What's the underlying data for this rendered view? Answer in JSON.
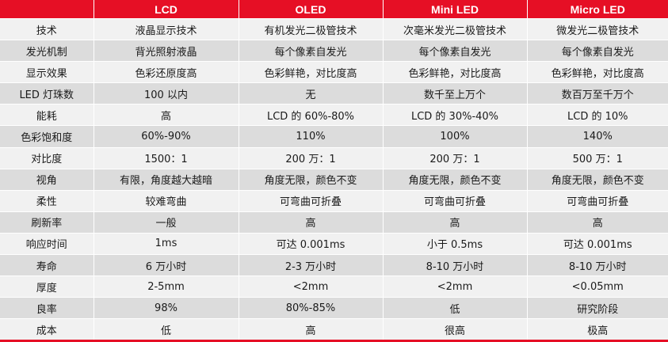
{
  "table": {
    "header": [
      "",
      "LCD",
      "OLED",
      "Mini LED",
      "Micro LED"
    ],
    "rows": [
      [
        "技术",
        "液晶显示技术",
        "有机发光二极管技术",
        "次毫米发光二极管技术",
        "微发光二极管技术"
      ],
      [
        "发光机制",
        "背光照射液晶",
        "每个像素自发光",
        "每个像素自发光",
        "每个像素自发光"
      ],
      [
        "显示效果",
        "色彩还原度高",
        "色彩鲜艳，对比度高",
        "色彩鲜艳，对比度高",
        "色彩鲜艳，对比度高"
      ],
      [
        "LED 灯珠数",
        "100 以内",
        "无",
        "数千至上万个",
        "数百万至千万个"
      ],
      [
        "能耗",
        "高",
        "LCD 的 60%-80%",
        "LCD 的 30%-40%",
        "LCD 的 10%"
      ],
      [
        "色彩饱和度",
        "60%-90%",
        "110%",
        "100%",
        "140%"
      ],
      [
        "对比度",
        "1500：1",
        "200 万：1",
        "200 万：1",
        "500 万：1"
      ],
      [
        "视角",
        "有限，角度越大越暗",
        "角度无限，颜色不变",
        "角度无限，颜色不变",
        "角度无限，颜色不变"
      ],
      [
        "柔性",
        "较难弯曲",
        "可弯曲可折叠",
        "可弯曲可折叠",
        "可弯曲可折叠"
      ],
      [
        "刷新率",
        "一般",
        "高",
        "高",
        "高"
      ],
      [
        "响应时间",
        "1ms",
        "可达 0.001ms",
        "小于 0.5ms",
        "可达 0.001ms"
      ],
      [
        "寿命",
        "6 万小时",
        "2-3 万小时",
        "8-10 万小时",
        "8-10 万小时"
      ],
      [
        "厚度",
        "2-5mm",
        "<2mm",
        "<2mm",
        "<0.05mm"
      ],
      [
        "良率",
        "98%",
        "80%-85%",
        "低",
        "研究阶段"
      ],
      [
        "成本",
        "低",
        "高",
        "很高",
        "极高"
      ]
    ]
  }
}
